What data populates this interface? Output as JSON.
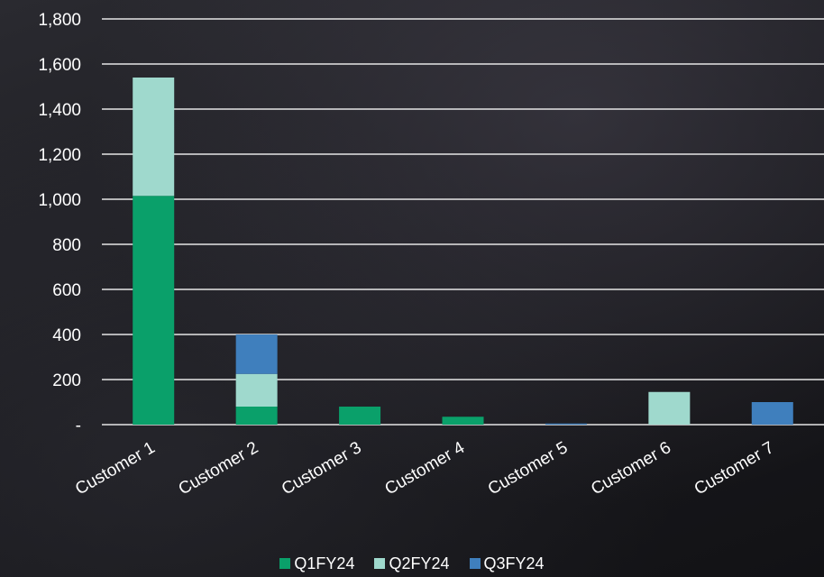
{
  "chart_data": {
    "type": "bar",
    "stacked": true,
    "categories": [
      "Customer 1",
      "Customer 2",
      "Customer 3",
      "Customer 4",
      "Customer 5",
      "Customer 6",
      "Customer 7"
    ],
    "series": [
      {
        "name": "Q1FY24",
        "color": "#0aa06a",
        "values": [
          1015,
          80,
          80,
          35,
          0,
          0,
          0
        ]
      },
      {
        "name": "Q2FY24",
        "color": "#9fd9cd",
        "values": [
          525,
          145,
          0,
          0,
          0,
          145,
          0
        ]
      },
      {
        "name": "Q3FY24",
        "color": "#3f7fbd",
        "values": [
          0,
          175,
          0,
          0,
          5,
          0,
          100
        ]
      }
    ],
    "yticks": [
      {
        "value": 0,
        "label": "-"
      },
      {
        "value": 200,
        "label": "200"
      },
      {
        "value": 400,
        "label": "400"
      },
      {
        "value": 600,
        "label": "600"
      },
      {
        "value": 800,
        "label": "800"
      },
      {
        "value": 1000,
        "label": "1,000"
      },
      {
        "value": 1200,
        "label": "1,200"
      },
      {
        "value": 1400,
        "label": "1,400"
      },
      {
        "value": 1600,
        "label": "1,600"
      },
      {
        "value": 1800,
        "label": "1,800"
      }
    ],
    "ylim": [
      0,
      1800
    ],
    "grid": true,
    "legend_position": "bottom",
    "xlabel": "",
    "ylabel": ""
  }
}
